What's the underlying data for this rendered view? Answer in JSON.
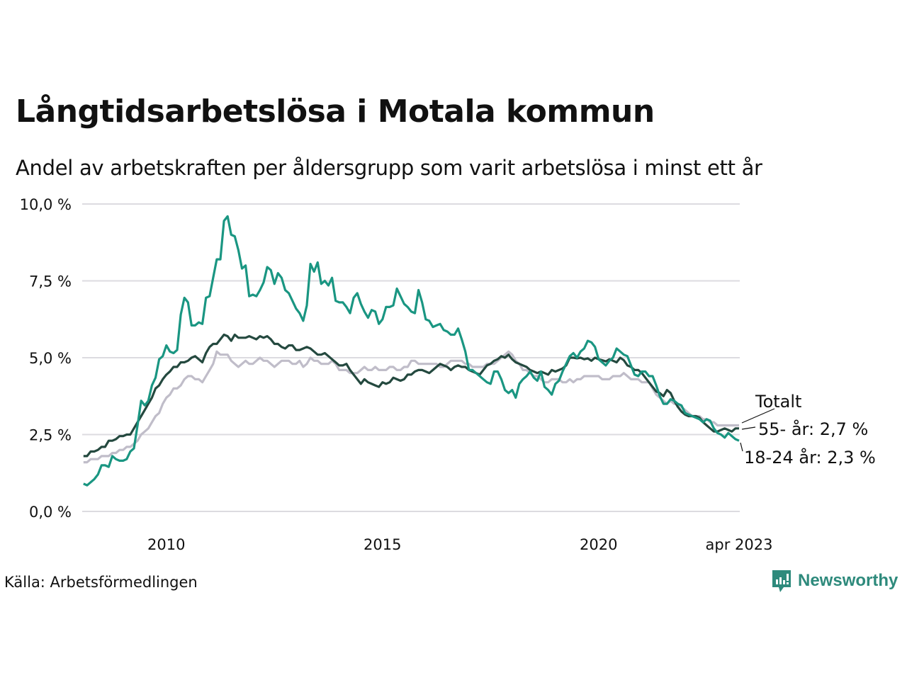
{
  "header": {
    "title": "Långtidsarbetslösa i Motala kommun",
    "subtitle": "Andel av arbetskraften per åldersgrupp som varit arbetslösa i minst ett år"
  },
  "footer": {
    "source": "Källa: Arbetsförmedlingen",
    "brand": "Newsworthy",
    "brand_icon": "newsworthy-logo-icon",
    "brand_color": "#2e8a7c"
  },
  "chart_data": {
    "type": "line",
    "title": "Långtidsarbetslösa i Motala kommun",
    "subtitle": "Andel av arbetskraften per åldersgrupp som varit arbetslösa i minst ett år",
    "xlabel": "",
    "ylabel": "",
    "x_start": "2008-02",
    "x_end": "2023-04",
    "x_frequency": "monthly",
    "x_ticks": [
      {
        "label": "2010",
        "year": 2010.0
      },
      {
        "label": "2015",
        "year": 2015.0
      },
      {
        "label": "2020",
        "year": 2020.0
      },
      {
        "label": "apr 2023",
        "year": 2023.25
      }
    ],
    "y_ticks": [
      {
        "label": "0,0 %",
        "value": 0
      },
      {
        "label": "2,5 %",
        "value": 2.5
      },
      {
        "label": "5,0 %",
        "value": 5
      },
      {
        "label": "7,5 %",
        "value": 7.5
      },
      {
        "label": "10,0 %",
        "value": 10
      }
    ],
    "ylim": [
      0,
      10
    ],
    "grid": true,
    "legend": "direct-labels-right",
    "series": [
      {
        "name": "Totalt",
        "label": "Totalt",
        "color": "#c0bdc9",
        "values": [
          1.6,
          1.6,
          1.7,
          1.7,
          1.7,
          1.8,
          1.8,
          1.8,
          1.9,
          1.9,
          2.0,
          2.0,
          2.1,
          2.1,
          2.2,
          2.3,
          2.5,
          2.6,
          2.7,
          2.9,
          3.1,
          3.2,
          3.5,
          3.7,
          3.8,
          4.0,
          4.0,
          4.1,
          4.3,
          4.4,
          4.4,
          4.3,
          4.3,
          4.2,
          4.4,
          4.6,
          4.8,
          5.2,
          5.1,
          5.1,
          5.1,
          4.9,
          4.8,
          4.7,
          4.8,
          4.9,
          4.8,
          4.8,
          4.9,
          5.0,
          4.9,
          4.9,
          4.8,
          4.7,
          4.8,
          4.9,
          4.9,
          4.9,
          4.8,
          4.8,
          4.9,
          4.7,
          4.8,
          5.0,
          4.9,
          4.9,
          4.8,
          4.8,
          4.8,
          4.9,
          4.8,
          4.6,
          4.6,
          4.6,
          4.5,
          4.5,
          4.5,
          4.6,
          4.7,
          4.6,
          4.6,
          4.7,
          4.6,
          4.6,
          4.6,
          4.7,
          4.7,
          4.6,
          4.6,
          4.7,
          4.7,
          4.9,
          4.9,
          4.8,
          4.8,
          4.8,
          4.8,
          4.8,
          4.8,
          4.7,
          4.7,
          4.8,
          4.9,
          4.9,
          4.9,
          4.9,
          4.8,
          4.8,
          4.7,
          4.7,
          4.7,
          4.7,
          4.8,
          4.8,
          4.8,
          4.9,
          5.0,
          5.1,
          5.2,
          5.1,
          4.9,
          4.8,
          4.6,
          4.6,
          4.5,
          4.4,
          4.4,
          4.3,
          4.2,
          4.2,
          4.3,
          4.3,
          4.3,
          4.2,
          4.2,
          4.3,
          4.2,
          4.3,
          4.3,
          4.4,
          4.4,
          4.4,
          4.4,
          4.4,
          4.3,
          4.3,
          4.3,
          4.4,
          4.4,
          4.4,
          4.5,
          4.4,
          4.3,
          4.3,
          4.3,
          4.2,
          4.2,
          4.2,
          4.0,
          3.8,
          3.7,
          3.6,
          3.5,
          3.6,
          3.5,
          3.5,
          3.4,
          3.3,
          3.2,
          3.1,
          3.1,
          3.1,
          3.0,
          3.0,
          2.9,
          2.9,
          2.8,
          2.8,
          2.8,
          2.8,
          2.8,
          2.8,
          2.8
        ]
      },
      {
        "name": "55- år",
        "label": "55- år: 2,7 %",
        "color": "#24493f",
        "values": [
          1.8,
          1.8,
          1.95,
          1.95,
          2.0,
          2.1,
          2.1,
          2.3,
          2.3,
          2.35,
          2.45,
          2.45,
          2.5,
          2.5,
          2.7,
          2.9,
          3.1,
          3.3,
          3.5,
          3.7,
          4.0,
          4.1,
          4.3,
          4.45,
          4.55,
          4.7,
          4.7,
          4.85,
          4.85,
          4.9,
          5.0,
          5.05,
          4.95,
          4.85,
          5.15,
          5.35,
          5.45,
          5.45,
          5.6,
          5.75,
          5.7,
          5.55,
          5.75,
          5.65,
          5.65,
          5.65,
          5.7,
          5.65,
          5.6,
          5.7,
          5.65,
          5.7,
          5.6,
          5.45,
          5.45,
          5.35,
          5.3,
          5.4,
          5.4,
          5.25,
          5.25,
          5.3,
          5.35,
          5.3,
          5.2,
          5.1,
          5.1,
          5.15,
          5.05,
          4.95,
          4.85,
          4.75,
          4.75,
          4.8,
          4.6,
          4.45,
          4.3,
          4.15,
          4.3,
          4.2,
          4.15,
          4.1,
          4.05,
          4.2,
          4.15,
          4.2,
          4.35,
          4.3,
          4.25,
          4.3,
          4.45,
          4.45,
          4.55,
          4.6,
          4.6,
          4.55,
          4.5,
          4.6,
          4.7,
          4.8,
          4.75,
          4.7,
          4.6,
          4.7,
          4.75,
          4.7,
          4.7,
          4.6,
          4.55,
          4.5,
          4.45,
          4.6,
          4.75,
          4.8,
          4.9,
          4.95,
          5.05,
          5.0,
          5.1,
          4.95,
          4.85,
          4.8,
          4.75,
          4.7,
          4.6,
          4.55,
          4.5,
          4.55,
          4.5,
          4.45,
          4.6,
          4.55,
          4.6,
          4.65,
          4.75,
          5.0,
          5.0,
          4.98,
          5.0,
          4.95,
          4.98,
          4.9,
          5.0,
          4.95,
          4.92,
          4.88,
          4.95,
          4.9,
          4.85,
          5.0,
          4.92,
          4.75,
          4.7,
          4.6,
          4.6,
          4.5,
          4.35,
          4.2,
          4.05,
          3.9,
          3.85,
          3.75,
          3.95,
          3.85,
          3.6,
          3.4,
          3.25,
          3.15,
          3.1,
          3.1,
          3.1,
          3.05,
          2.9,
          2.8,
          2.7,
          2.6,
          2.6,
          2.65,
          2.7,
          2.65,
          2.6,
          2.7,
          2.7
        ]
      },
      {
        "name": "18-24 år",
        "label": "18-24 år: 2,3 %",
        "color": "#1a9682",
        "values": [
          0.9,
          0.85,
          0.95,
          1.05,
          1.2,
          1.5,
          1.5,
          1.45,
          1.8,
          1.7,
          1.65,
          1.65,
          1.7,
          1.95,
          2.05,
          2.8,
          3.6,
          3.45,
          3.6,
          4.1,
          4.35,
          4.95,
          5.05,
          5.4,
          5.2,
          5.15,
          5.25,
          6.4,
          6.95,
          6.8,
          6.05,
          6.05,
          6.15,
          6.1,
          6.95,
          7.0,
          7.6,
          8.2,
          8.2,
          9.45,
          9.6,
          9.0,
          8.95,
          8.5,
          7.9,
          8.0,
          7.0,
          7.05,
          7.0,
          7.2,
          7.45,
          7.95,
          7.85,
          7.4,
          7.75,
          7.6,
          7.2,
          7.1,
          6.85,
          6.6,
          6.45,
          6.2,
          6.7,
          8.05,
          7.8,
          8.1,
          7.4,
          7.5,
          7.35,
          7.6,
          6.85,
          6.8,
          6.8,
          6.65,
          6.45,
          6.95,
          7.1,
          6.75,
          6.5,
          6.3,
          6.55,
          6.5,
          6.1,
          6.25,
          6.65,
          6.65,
          6.7,
          7.25,
          7.0,
          6.75,
          6.65,
          6.5,
          6.45,
          7.2,
          6.8,
          6.25,
          6.2,
          6.0,
          6.05,
          6.1,
          5.9,
          5.85,
          5.75,
          5.75,
          5.95,
          5.6,
          5.2,
          4.6,
          4.6,
          4.5,
          4.4,
          4.3,
          4.2,
          4.15,
          4.55,
          4.55,
          4.3,
          3.95,
          3.85,
          3.95,
          3.7,
          4.15,
          4.3,
          4.4,
          4.55,
          4.35,
          4.25,
          4.55,
          4.05,
          3.95,
          3.8,
          4.15,
          4.25,
          4.55,
          4.8,
          5.05,
          5.15,
          5.0,
          5.2,
          5.3,
          5.55,
          5.5,
          5.35,
          4.95,
          4.85,
          4.75,
          4.9,
          5.0,
          5.3,
          5.2,
          5.1,
          5.05,
          4.75,
          4.45,
          4.4,
          4.55,
          4.55,
          4.4,
          4.4,
          4.1,
          3.75,
          3.5,
          3.5,
          3.65,
          3.6,
          3.5,
          3.45,
          3.2,
          3.15,
          3.1,
          3.05,
          3.0,
          2.9,
          3.0,
          2.95,
          2.7,
          2.55,
          2.5,
          2.4,
          2.55,
          2.45,
          2.35,
          2.3
        ]
      }
    ]
  }
}
